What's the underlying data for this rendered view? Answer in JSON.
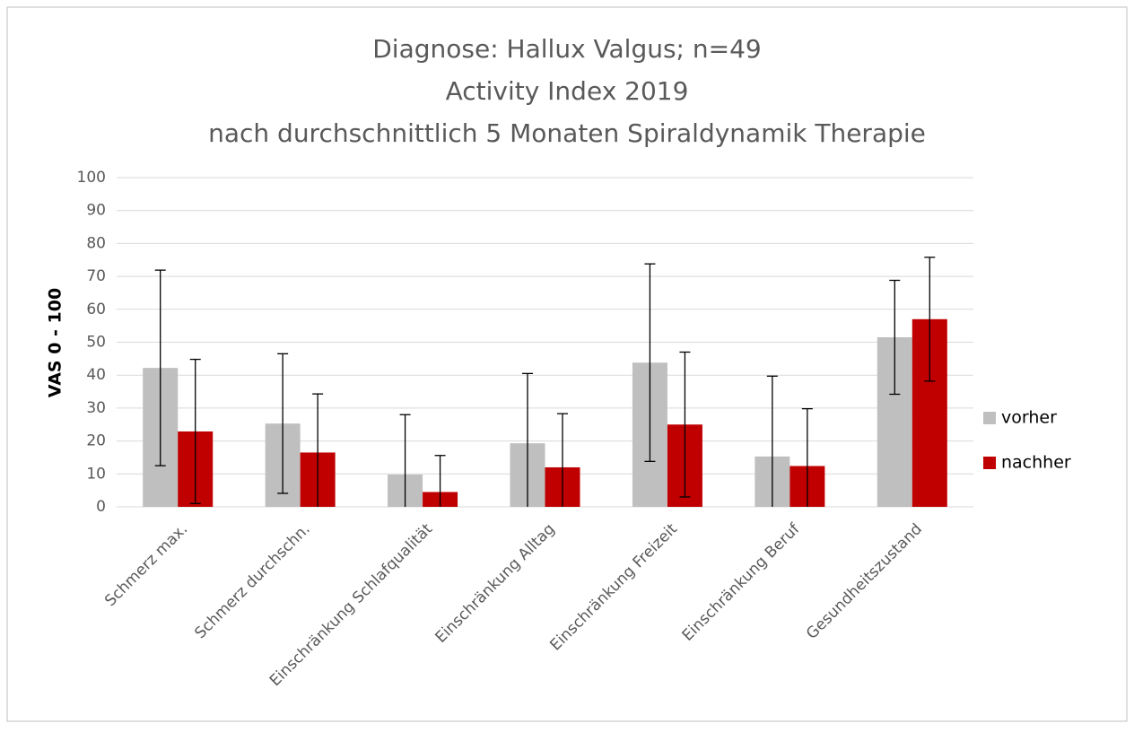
{
  "chart_data": {
    "type": "bar",
    "title": [
      "Diagnose: Hallux Valgus; n=49",
      "Activity Index 2019",
      "nach durchschnittlich 5 Monaten Spiraldynamik Therapie"
    ],
    "y_label": "VAS 0 - 100",
    "categories": [
      "Schmerz max.",
      "Schmerz durchschn.",
      "Einschränkung Schlafqualität",
      "Einschränkung Alltag",
      "Einschränkung Freizeit",
      "Einschränkung Beruf",
      "Gesundheitszustand"
    ],
    "series": [
      {
        "name": "vorher",
        "color": "#bfbfbf",
        "values": [
          42.2,
          25.3,
          9.8,
          19.3,
          43.8,
          15.3,
          51.5
        ],
        "errors": [
          29.7,
          21.2,
          18.2,
          21.2,
          30.0,
          24.4,
          17.3
        ]
      },
      {
        "name": "nachher",
        "color": "#c00000",
        "values": [
          22.9,
          16.5,
          4.5,
          12.0,
          25.0,
          12.4,
          57.0
        ],
        "errors": [
          21.9,
          17.8,
          11.1,
          16.3,
          22.0,
          17.4,
          18.8
        ]
      }
    ],
    "ylim": [
      0,
      100
    ],
    "yticks": [
      0,
      10,
      20,
      30,
      40,
      50,
      60,
      70,
      80,
      90,
      100
    ],
    "grid": true,
    "legend": "right"
  }
}
